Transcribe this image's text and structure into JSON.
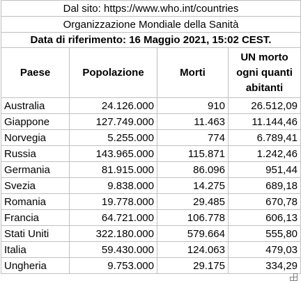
{
  "source_line": "Dal sito: https://www.who.int/countries",
  "organization": "Organizzazione Mondiale della Sanità",
  "reference_date": "Data di riferimento: 16 Maggio 2021, 15:02 CEST.",
  "headers": {
    "country": "Paese",
    "population": "Popolazione",
    "deaths": "Morti",
    "ratio_lines": [
      "UN morto",
      "ogni quanti",
      "abitanti"
    ]
  },
  "rows": [
    {
      "country": "Australia",
      "population": "24.126.000",
      "deaths": "910",
      "ratio": "26.512,09"
    },
    {
      "country": "Giappone",
      "population": "127.749.000",
      "deaths": "11.463",
      "ratio": "11.144,46"
    },
    {
      "country": "Norvegia",
      "population": "5.255.000",
      "deaths": "774",
      "ratio": "6.789,41"
    },
    {
      "country": "Russia",
      "population": "143.965.000",
      "deaths": "115.871",
      "ratio": "1.242,46"
    },
    {
      "country": "Germania",
      "population": "81.915.000",
      "deaths": "86.096",
      "ratio": "951,44"
    },
    {
      "country": "Svezia",
      "population": "9.838.000",
      "deaths": "14.275",
      "ratio": "689,18"
    },
    {
      "country": "Romania",
      "population": "19.778.000",
      "deaths": "29.485",
      "ratio": "670,78"
    },
    {
      "country": "Francia",
      "population": "64.721.000",
      "deaths": "106.778",
      "ratio": "606,13"
    },
    {
      "country": "Stati Uniti",
      "population": "322.180.000",
      "deaths": "579.664",
      "ratio": "555,80"
    },
    {
      "country": "Italia",
      "population": "59.430.000",
      "deaths": "124.063",
      "ratio": "479,03"
    },
    {
      "country": "Ungheria",
      "population": "9.753.000",
      "deaths": "29.175",
      "ratio": "334,29"
    }
  ]
}
